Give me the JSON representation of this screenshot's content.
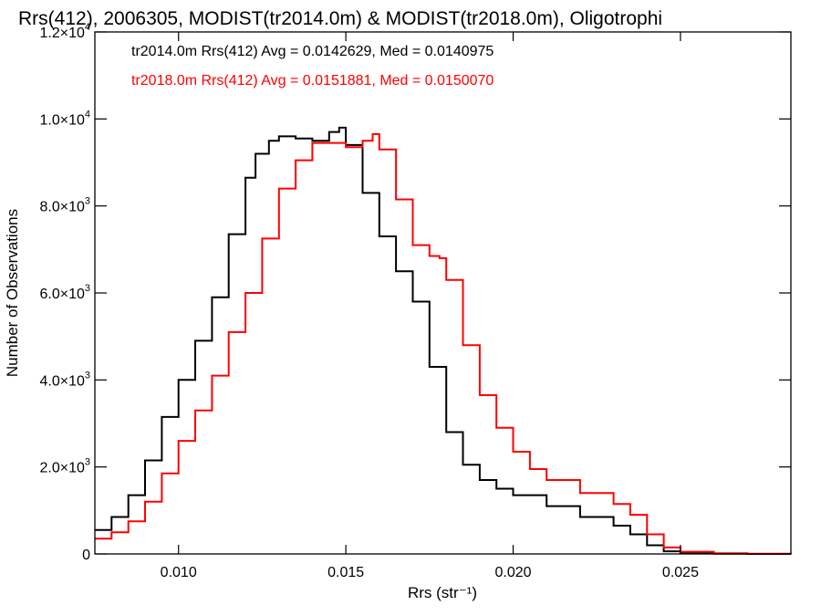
{
  "chart_data": {
    "type": "line",
    "title": "Rrs(412), 2006305, MODIST(tr2014.0m) & MODIST(tr2018.0m), Oligotrophi",
    "xlabel": "Rrs (str⁻¹)",
    "ylabel": "Number of Observations",
    "xlim": [
      0.0075,
      0.0283
    ],
    "ylim": [
      0,
      12000
    ],
    "xticks": [
      {
        "value": 0.01,
        "label": "0.010"
      },
      {
        "value": 0.015,
        "label": "0.015"
      },
      {
        "value": 0.02,
        "label": "0.020"
      },
      {
        "value": 0.025,
        "label": "0.025"
      }
    ],
    "yticks": [
      {
        "value": 0,
        "mant": "0",
        "exp": ""
      },
      {
        "value": 2000,
        "mant": "2.0×10",
        "exp": "3"
      },
      {
        "value": 4000,
        "mant": "4.0×10",
        "exp": "3"
      },
      {
        "value": 6000,
        "mant": "6.0×10",
        "exp": "3"
      },
      {
        "value": 8000,
        "mant": "8.0×10",
        "exp": "3"
      },
      {
        "value": 10000,
        "mant": "1.0×10",
        "exp": "4"
      },
      {
        "value": 12000,
        "mant": "1.2×10",
        "exp": "4"
      }
    ],
    "grid": false,
    "legend_position": "top-left",
    "series": [
      {
        "name": "tr2014.0m",
        "label": "tr2014.0m Rrs(412) Avg = 0.0142629, Med = 0.0140975",
        "color": "#000000",
        "x": [
          0.0075,
          0.008,
          0.0085,
          0.009,
          0.0095,
          0.01,
          0.0105,
          0.011,
          0.0115,
          0.012,
          0.0123,
          0.0127,
          0.013,
          0.0135,
          0.014,
          0.0145,
          0.0148,
          0.015,
          0.0155,
          0.016,
          0.0165,
          0.017,
          0.0175,
          0.018,
          0.0185,
          0.019,
          0.0195,
          0.02,
          0.021,
          0.022,
          0.023,
          0.0235,
          0.024,
          0.0245,
          0.025,
          0.026,
          0.027,
          0.0283
        ],
        "y": [
          550,
          850,
          1350,
          2150,
          3150,
          4000,
          4900,
          5900,
          7350,
          8650,
          9200,
          9500,
          9600,
          9550,
          9500,
          9700,
          9800,
          9400,
          8300,
          7300,
          6500,
          5800,
          4300,
          2800,
          2050,
          1700,
          1500,
          1350,
          1100,
          850,
          650,
          450,
          200,
          60,
          20,
          5,
          0,
          0
        ]
      },
      {
        "name": "tr2018.0m",
        "label": "tr2018.0m Rrs(412) Avg = 0.0151881, Med = 0.0150070",
        "color": "#ff0000",
        "x": [
          0.0075,
          0.008,
          0.0085,
          0.009,
          0.0095,
          0.01,
          0.0105,
          0.011,
          0.0115,
          0.012,
          0.0125,
          0.013,
          0.0135,
          0.014,
          0.0145,
          0.015,
          0.0155,
          0.0158,
          0.016,
          0.0165,
          0.017,
          0.0175,
          0.0178,
          0.018,
          0.0185,
          0.019,
          0.0195,
          0.02,
          0.0205,
          0.021,
          0.022,
          0.023,
          0.0235,
          0.024,
          0.0245,
          0.025,
          0.026,
          0.027,
          0.0283
        ],
        "y": [
          350,
          500,
          750,
          1200,
          1850,
          2600,
          3300,
          4100,
          5100,
          6000,
          7250,
          8400,
          9050,
          9450,
          9450,
          9350,
          9500,
          9650,
          9300,
          8150,
          7100,
          6850,
          6800,
          6300,
          4800,
          3650,
          2900,
          2350,
          1950,
          1700,
          1400,
          1150,
          900,
          450,
          150,
          50,
          15,
          5,
          0
        ]
      }
    ]
  }
}
